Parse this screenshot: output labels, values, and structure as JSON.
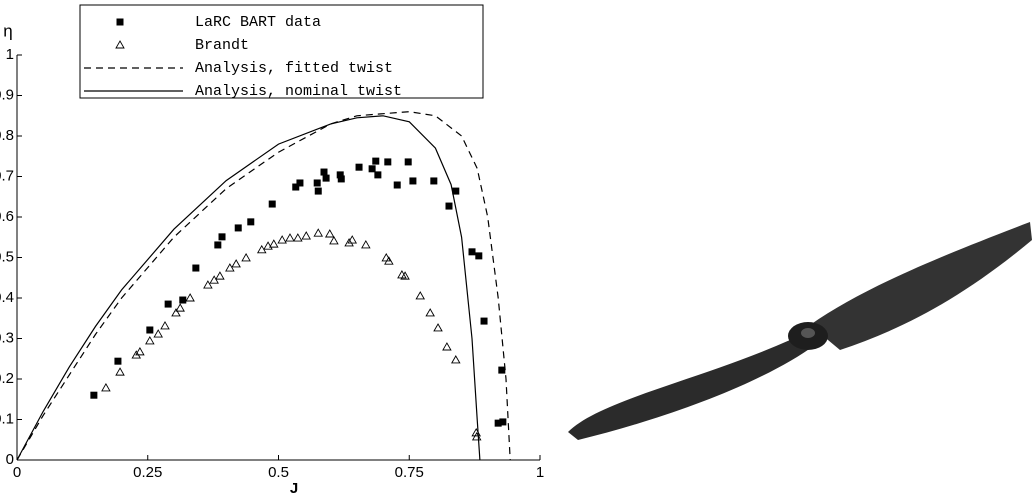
{
  "chart_data": {
    "type": "line",
    "ylabel": "η",
    "xlabel": "J",
    "xlim": [
      0,
      1
    ],
    "ylim": [
      0,
      1
    ],
    "xticks": [
      0,
      0.25,
      0.5,
      0.75,
      1
    ],
    "yticks": [
      0,
      0.1,
      0.2,
      0.3,
      0.4,
      0.5,
      0.6,
      0.7,
      0.8,
      0.9,
      1
    ],
    "legend": "upper left",
    "series": [
      {
        "name": "LaRC BART data",
        "style": "square",
        "color": "#000000",
        "x": [
          0.147,
          0.193,
          0.254,
          0.289,
          0.317,
          0.342,
          0.384,
          0.392,
          0.423,
          0.447,
          0.488,
          0.533,
          0.541,
          0.574,
          0.576,
          0.587,
          0.591,
          0.618,
          0.62,
          0.654,
          0.679,
          0.686,
          0.69,
          0.709,
          0.727,
          0.748,
          0.757,
          0.797,
          0.826,
          0.839,
          0.87,
          0.883,
          0.893,
          0.92,
          0.929,
          0.927
        ],
        "values": [
          0.16,
          0.244,
          0.321,
          0.385,
          0.395,
          0.474,
          0.531,
          0.551,
          0.573,
          0.588,
          0.632,
          0.674,
          0.684,
          0.684,
          0.664,
          0.711,
          0.696,
          0.704,
          0.694,
          0.723,
          0.719,
          0.738,
          0.704,
          0.736,
          0.679,
          0.736,
          0.689,
          0.689,
          0.627,
          0.664,
          0.514,
          0.504,
          0.343,
          0.091,
          0.094,
          0.222
        ]
      },
      {
        "name": "Brandt",
        "style": "triangle",
        "color": "#000000",
        "x": [
          0.17,
          0.197,
          0.228,
          0.235,
          0.254,
          0.27,
          0.283,
          0.304,
          0.312,
          0.331,
          0.365,
          0.377,
          0.388,
          0.407,
          0.419,
          0.438,
          0.468,
          0.48,
          0.491,
          0.507,
          0.522,
          0.537,
          0.553,
          0.576,
          0.598,
          0.606,
          0.635,
          0.641,
          0.667,
          0.706,
          0.711,
          0.736,
          0.742,
          0.771,
          0.79,
          0.805,
          0.822,
          0.839,
          0.878,
          0.879
        ],
        "values": [
          0.178,
          0.217,
          0.259,
          0.267,
          0.294,
          0.311,
          0.331,
          0.363,
          0.375,
          0.4,
          0.432,
          0.444,
          0.454,
          0.474,
          0.484,
          0.499,
          0.519,
          0.528,
          0.533,
          0.543,
          0.548,
          0.548,
          0.553,
          0.56,
          0.558,
          0.541,
          0.536,
          0.543,
          0.531,
          0.499,
          0.491,
          0.457,
          0.454,
          0.405,
          0.363,
          0.326,
          0.279,
          0.247,
          0.067,
          0.057
        ]
      },
      {
        "name": "Analysis, fitted twist",
        "style": "dashed",
        "color": "#000000",
        "x": [
          0,
          0.05,
          0.1,
          0.15,
          0.2,
          0.3,
          0.4,
          0.5,
          0.6,
          0.65,
          0.7,
          0.75,
          0.8,
          0.85,
          0.88,
          0.9,
          0.92,
          0.935,
          0.943
        ],
        "values": [
          0,
          0.11,
          0.21,
          0.31,
          0.4,
          0.55,
          0.67,
          0.76,
          0.83,
          0.85,
          0.855,
          0.86,
          0.85,
          0.8,
          0.72,
          0.6,
          0.4,
          0.2,
          0
        ]
      },
      {
        "name": "Analysis, nominal twist",
        "style": "solid",
        "color": "#000000",
        "x": [
          0,
          0.05,
          0.1,
          0.15,
          0.2,
          0.3,
          0.4,
          0.5,
          0.6,
          0.65,
          0.7,
          0.75,
          0.8,
          0.83,
          0.85,
          0.87,
          0.88,
          0.885
        ],
        "values": [
          0,
          0.12,
          0.23,
          0.33,
          0.42,
          0.57,
          0.69,
          0.78,
          0.83,
          0.845,
          0.85,
          0.835,
          0.77,
          0.68,
          0.55,
          0.3,
          0.1,
          0
        ]
      }
    ]
  }
}
